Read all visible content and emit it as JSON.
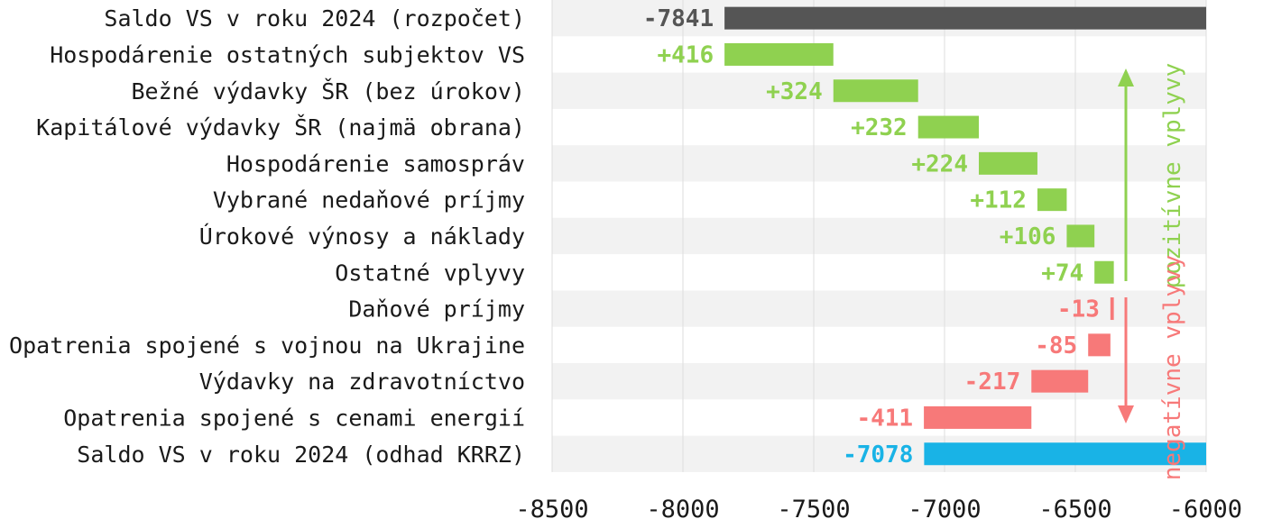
{
  "chart_data": {
    "type": "bar",
    "orientation": "horizontal-waterfall",
    "title": "",
    "xlabel": "",
    "ylabel": "",
    "xlim": [
      -8500,
      -6000
    ],
    "xticks": [
      -8500,
      -8000,
      -7500,
      -7000,
      -6500,
      -6000
    ],
    "grid": true,
    "categories": [
      "Saldo VS v roku 2024 (rozpočet)",
      "Hospodárenie ostatných subjektov VS",
      "Bežné výdavky ŠR (bez úrokov)",
      "Kapitálové výdavky ŠR (najmä obrana)",
      "Hospodárenie samospráv",
      "Vybrané nedaňové príjmy",
      "Úrokové výnosy a náklady",
      "Ostatné vplyvy",
      "Daňové príjmy",
      "Opatrenia spojené s vojnou na Ukrajine",
      "Výdavky na zdravotníctvo",
      "Opatrenia spojené s cenami energií",
      "Saldo VS v roku 2024 (odhad KRRZ)"
    ],
    "values": [
      -7841,
      416,
      324,
      232,
      224,
      112,
      106,
      74,
      -13,
      -85,
      -217,
      -411,
      -7078
    ],
    "value_labels": [
      "-7841",
      "+416",
      "+324",
      "+232",
      "+224",
      "+112",
      "+106",
      "+74",
      "-13",
      "-85",
      "-217",
      "-411",
      "-7078"
    ],
    "bar_kinds": [
      "total",
      "up",
      "up",
      "up",
      "up",
      "up",
      "up",
      "up",
      "down",
      "down",
      "down",
      "down",
      "total"
    ],
    "annotations": {
      "positive": "pozitívne vplyvy",
      "negative": "negatívne vplyvy"
    },
    "colors": {
      "start_total": "#555555",
      "end_total": "#19b3e6",
      "positive": "#8fd150",
      "negative": "#f77979",
      "band": "#f2f2f2",
      "grid": "#dddddd"
    }
  }
}
